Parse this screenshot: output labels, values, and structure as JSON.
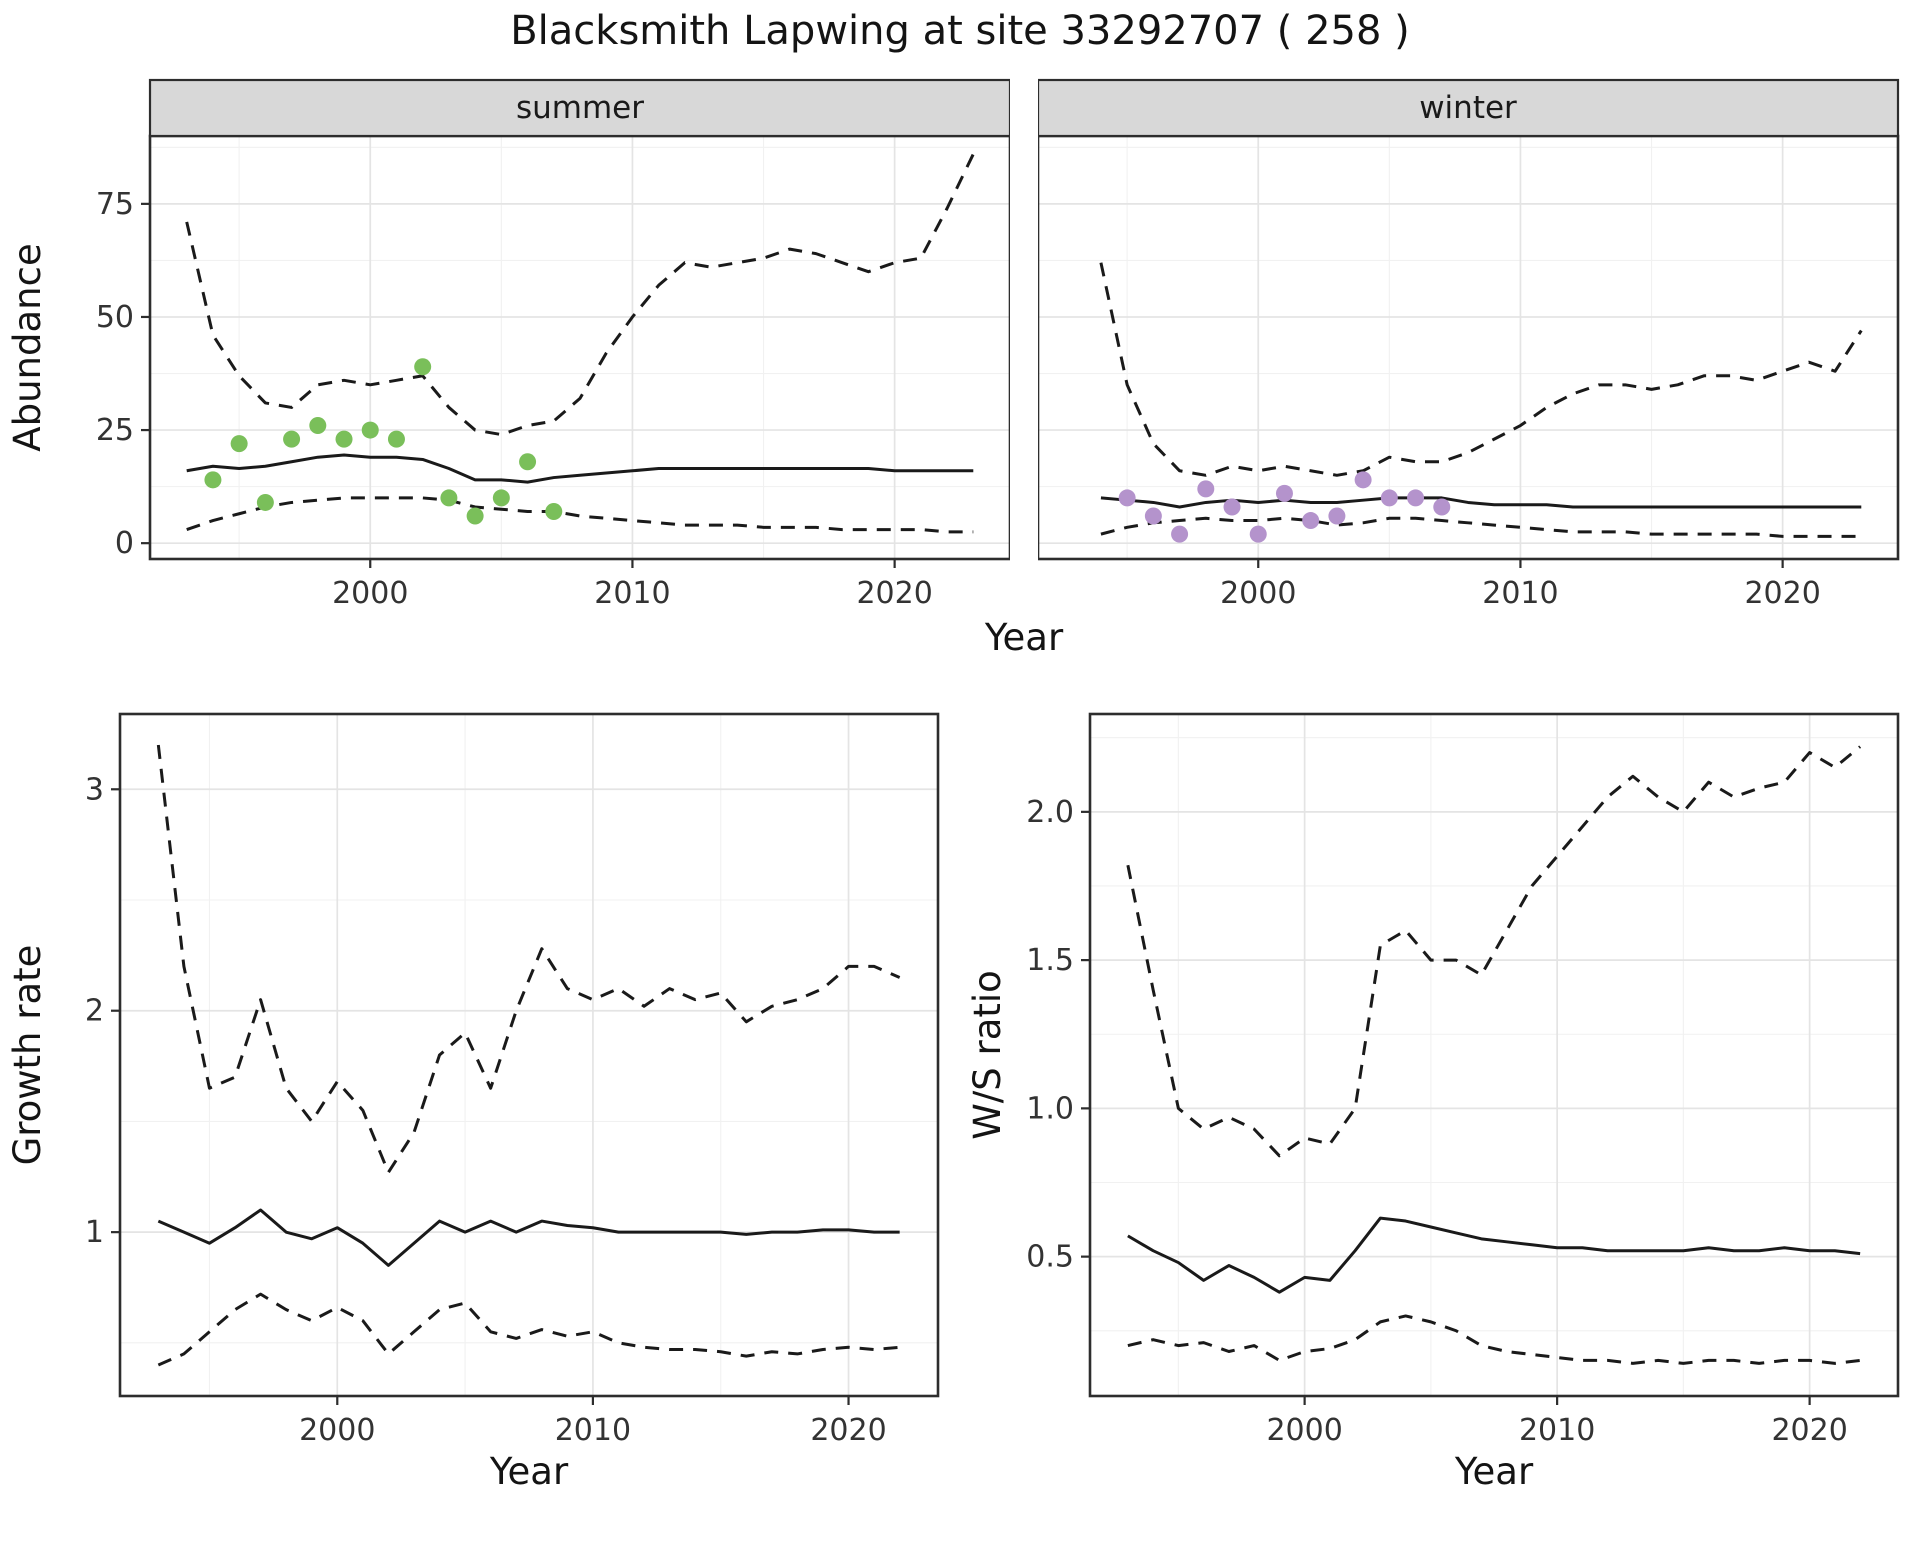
{
  "title": "Blacksmith Lapwing at site 33292707 ( 258 )",
  "axes": {
    "year_label": "Year"
  },
  "colors": {
    "line": "#1a1a1a",
    "grid_major": "#e4e4e4",
    "grid_minor": "#f1f1f1",
    "strip_bg": "#d8d8d8",
    "panel_border": "#2d2d2d",
    "tick_text": "#333333",
    "summer_points": "#7abf5a",
    "winter_points": "#b493cc"
  },
  "chart_data": [
    {
      "id": "abundance-summer",
      "type": "line",
      "facet_label": "summer",
      "ylabel": "Abundance",
      "xlabel": "Year",
      "xlim": [
        1991.6,
        2024.4
      ],
      "ylim": [
        -3.5,
        90
      ],
      "xticks": [
        2000,
        2010,
        2020
      ],
      "xtick_labels": [
        "2000",
        "2010",
        "2020"
      ],
      "yticks": [
        0,
        25,
        50,
        75
      ],
      "ytick_labels": [
        "0",
        "25",
        "50",
        "75"
      ],
      "series": [
        {
          "name": "upper_ci",
          "style": "dashed",
          "x": [
            1993,
            1994,
            1995,
            1996,
            1997,
            1998,
            1999,
            2000,
            2001,
            2002,
            2003,
            2004,
            2005,
            2006,
            2007,
            2008,
            2009,
            2010,
            2011,
            2012,
            2013,
            2014,
            2015,
            2016,
            2017,
            2018,
            2019,
            2020,
            2021,
            2022,
            2023
          ],
          "y": [
            71,
            46,
            37,
            31,
            30,
            35,
            36,
            35,
            36,
            37,
            30,
            25,
            24,
            26,
            27,
            32,
            42,
            50,
            57,
            62,
            61,
            62,
            63,
            65,
            64,
            62,
            60,
            62,
            63,
            74,
            86
          ]
        },
        {
          "name": "median",
          "style": "solid",
          "x": [
            1993,
            1994,
            1995,
            1996,
            1997,
            1998,
            1999,
            2000,
            2001,
            2002,
            2003,
            2004,
            2005,
            2006,
            2007,
            2008,
            2009,
            2010,
            2011,
            2012,
            2013,
            2014,
            2015,
            2016,
            2017,
            2018,
            2019,
            2020,
            2021,
            2022,
            2023
          ],
          "y": [
            16,
            17,
            16.5,
            17,
            18,
            19,
            19.5,
            19,
            19,
            18.5,
            16.5,
            14,
            14,
            13.5,
            14.5,
            15,
            15.5,
            16,
            16.5,
            16.5,
            16.5,
            16.5,
            16.5,
            16.5,
            16.5,
            16.5,
            16.5,
            16,
            16,
            16,
            16
          ]
        },
        {
          "name": "lower_ci",
          "style": "dashed",
          "x": [
            1993,
            1994,
            1995,
            1996,
            1997,
            1998,
            1999,
            2000,
            2001,
            2002,
            2003,
            2004,
            2005,
            2006,
            2007,
            2008,
            2009,
            2010,
            2011,
            2012,
            2013,
            2014,
            2015,
            2016,
            2017,
            2018,
            2019,
            2020,
            2021,
            2022,
            2023
          ],
          "y": [
            3,
            5,
            6.5,
            8,
            9,
            9.5,
            10,
            10,
            10,
            10,
            9.5,
            8,
            7.5,
            7,
            7,
            6,
            5.5,
            5,
            4.5,
            4,
            4,
            4,
            3.5,
            3.5,
            3.5,
            3,
            3,
            3,
            3,
            2.5,
            2.5
          ]
        }
      ],
      "points": {
        "name": "observed_counts_summer",
        "color": "#7abf5a",
        "x": [
          1994,
          1995,
          1996,
          1997,
          1998,
          1999,
          2000,
          2001,
          2002,
          2003,
          2004,
          2005,
          2006,
          2007
        ],
        "y": [
          14,
          22,
          9,
          23,
          26,
          23,
          25,
          23,
          39,
          10,
          6,
          10,
          18,
          7
        ]
      }
    },
    {
      "id": "abundance-winter",
      "type": "line",
      "facet_label": "winter",
      "ylabel": "",
      "xlabel": "Year",
      "xlim": [
        1991.6,
        2024.4
      ],
      "ylim": [
        -3.5,
        90
      ],
      "xticks": [
        2000,
        2010,
        2020
      ],
      "xtick_labels": [
        "2000",
        "2010",
        "2020"
      ],
      "yticks": [
        0,
        25,
        50,
        75
      ],
      "ytick_labels": [
        "0",
        "25",
        "50",
        "75"
      ],
      "series": [
        {
          "name": "upper_ci",
          "style": "dashed",
          "x": [
            1994,
            1995,
            1996,
            1997,
            1998,
            1999,
            2000,
            2001,
            2002,
            2003,
            2004,
            2005,
            2006,
            2007,
            2008,
            2009,
            2010,
            2011,
            2012,
            2013,
            2014,
            2015,
            2016,
            2017,
            2018,
            2019,
            2020,
            2021,
            2022,
            2023
          ],
          "y": [
            62,
            35,
            22,
            16,
            15,
            17,
            16,
            17,
            16,
            15,
            16,
            19,
            18,
            18,
            20,
            23,
            26,
            30,
            33,
            35,
            35,
            34,
            35,
            37,
            37,
            36,
            38,
            40,
            38,
            47
          ]
        },
        {
          "name": "median",
          "style": "solid",
          "x": [
            1994,
            1995,
            1996,
            1997,
            1998,
            1999,
            2000,
            2001,
            2002,
            2003,
            2004,
            2005,
            2006,
            2007,
            2008,
            2009,
            2010,
            2011,
            2012,
            2013,
            2014,
            2015,
            2016,
            2017,
            2018,
            2019,
            2020,
            2021,
            2022,
            2023
          ],
          "y": [
            10,
            9.5,
            9,
            8,
            9,
            9.5,
            9,
            9.5,
            9,
            9,
            9.5,
            10,
            10,
            10,
            9,
            8.5,
            8.5,
            8.5,
            8,
            8,
            8,
            8,
            8,
            8,
            8,
            8,
            8,
            8,
            8,
            8
          ]
        },
        {
          "name": "lower_ci",
          "style": "dashed",
          "x": [
            1994,
            1995,
            1996,
            1997,
            1998,
            1999,
            2000,
            2001,
            2002,
            2003,
            2004,
            2005,
            2006,
            2007,
            2008,
            2009,
            2010,
            2011,
            2012,
            2013,
            2014,
            2015,
            2016,
            2017,
            2018,
            2019,
            2020,
            2021,
            2022,
            2023
          ],
          "y": [
            2,
            3.5,
            4.5,
            5,
            5.5,
            5,
            5,
            5.5,
            5,
            4,
            4.5,
            5.5,
            5.5,
            5,
            4.5,
            4,
            3.5,
            3,
            2.5,
            2.5,
            2.5,
            2,
            2,
            2,
            2,
            2,
            1.5,
            1.5,
            1.5,
            1.5
          ]
        }
      ],
      "points": {
        "name": "observed_counts_winter",
        "color": "#b493cc",
        "x": [
          1995,
          1996,
          1997,
          1998,
          1999,
          2000,
          2001,
          2002,
          2003,
          2004,
          2005,
          2006,
          2007
        ],
        "y": [
          10,
          6,
          2,
          12,
          8,
          2,
          11,
          5,
          6,
          14,
          10,
          10,
          8
        ]
      }
    },
    {
      "id": "growth-rate",
      "type": "line",
      "facet_label": "",
      "ylabel": "Growth rate",
      "xlabel": "Year",
      "xlim": [
        1991.5,
        2023.5
      ],
      "ylim": [
        0.26,
        3.34
      ],
      "xticks": [
        2000,
        2010,
        2020
      ],
      "xtick_labels": [
        "2000",
        "2010",
        "2020"
      ],
      "yticks": [
        1,
        2,
        3
      ],
      "ytick_labels": [
        "1",
        "2",
        "3"
      ],
      "series": [
        {
          "name": "upper_ci",
          "style": "dashed",
          "x": [
            1993,
            1994,
            1995,
            1996,
            1997,
            1998,
            1999,
            2000,
            2001,
            2002,
            2003,
            2004,
            2005,
            2006,
            2007,
            2008,
            2009,
            2010,
            2011,
            2012,
            2013,
            2014,
            2015,
            2016,
            2017,
            2018,
            2019,
            2020,
            2021,
            2022
          ],
          "y": [
            3.2,
            2.2,
            1.65,
            1.7,
            2.05,
            1.65,
            1.5,
            1.68,
            1.55,
            1.27,
            1.45,
            1.8,
            1.9,
            1.65,
            2.0,
            2.28,
            2.1,
            2.05,
            2.1,
            2.02,
            2.1,
            2.05,
            2.08,
            1.95,
            2.02,
            2.05,
            2.1,
            2.2,
            2.2,
            2.15
          ]
        },
        {
          "name": "median",
          "style": "solid",
          "x": [
            1993,
            1994,
            1995,
            1996,
            1997,
            1998,
            1999,
            2000,
            2001,
            2002,
            2003,
            2004,
            2005,
            2006,
            2007,
            2008,
            2009,
            2010,
            2011,
            2012,
            2013,
            2014,
            2015,
            2016,
            2017,
            2018,
            2019,
            2020,
            2021,
            2022
          ],
          "y": [
            1.05,
            1.0,
            0.95,
            1.02,
            1.1,
            1.0,
            0.97,
            1.02,
            0.95,
            0.85,
            0.95,
            1.05,
            1.0,
            1.05,
            1.0,
            1.05,
            1.03,
            1.02,
            1.0,
            1.0,
            1.0,
            1.0,
            1.0,
            0.99,
            1.0,
            1.0,
            1.01,
            1.01,
            1.0,
            1.0
          ]
        },
        {
          "name": "lower_ci",
          "style": "dashed",
          "x": [
            1993,
            1994,
            1995,
            1996,
            1997,
            1998,
            1999,
            2000,
            2001,
            2002,
            2003,
            2004,
            2005,
            2006,
            2007,
            2008,
            2009,
            2010,
            2011,
            2012,
            2013,
            2014,
            2015,
            2016,
            2017,
            2018,
            2019,
            2020,
            2021,
            2022
          ],
          "y": [
            0.4,
            0.45,
            0.55,
            0.65,
            0.72,
            0.65,
            0.6,
            0.66,
            0.6,
            0.45,
            0.55,
            0.65,
            0.68,
            0.55,
            0.52,
            0.56,
            0.53,
            0.55,
            0.5,
            0.48,
            0.47,
            0.47,
            0.46,
            0.44,
            0.46,
            0.45,
            0.47,
            0.48,
            0.47,
            0.48
          ]
        }
      ],
      "points": null
    },
    {
      "id": "ws-ratio",
      "type": "line",
      "facet_label": "",
      "ylabel": "W/S ratio",
      "xlabel": "Year",
      "xlim": [
        1991.5,
        2023.5
      ],
      "ylim": [
        0.03,
        2.33
      ],
      "xticks": [
        2000,
        2010,
        2020
      ],
      "xtick_labels": [
        "2000",
        "2010",
        "2020"
      ],
      "yticks": [
        0.5,
        1.0,
        1.5,
        2.0
      ],
      "ytick_labels": [
        "0.5",
        "1.0",
        "1.5",
        "2.0"
      ],
      "series": [
        {
          "name": "upper_ci",
          "style": "dashed",
          "x": [
            1993,
            1994,
            1995,
            1996,
            1997,
            1998,
            1999,
            2000,
            2001,
            2002,
            2003,
            2004,
            2005,
            2006,
            2007,
            2008,
            2009,
            2010,
            2011,
            2012,
            2013,
            2014,
            2015,
            2016,
            2017,
            2018,
            2019,
            2020,
            2021,
            2022
          ],
          "y": [
            1.82,
            1.4,
            1.0,
            0.93,
            0.97,
            0.93,
            0.84,
            0.9,
            0.88,
            1.0,
            1.55,
            1.6,
            1.5,
            1.5,
            1.45,
            1.6,
            1.75,
            1.85,
            1.95,
            2.05,
            2.12,
            2.05,
            2.0,
            2.1,
            2.05,
            2.08,
            2.1,
            2.2,
            2.15,
            2.22
          ]
        },
        {
          "name": "median",
          "style": "solid",
          "x": [
            1993,
            1994,
            1995,
            1996,
            1997,
            1998,
            1999,
            2000,
            2001,
            2002,
            2003,
            2004,
            2005,
            2006,
            2007,
            2008,
            2009,
            2010,
            2011,
            2012,
            2013,
            2014,
            2015,
            2016,
            2017,
            2018,
            2019,
            2020,
            2021,
            2022
          ],
          "y": [
            0.57,
            0.52,
            0.48,
            0.42,
            0.47,
            0.43,
            0.38,
            0.43,
            0.42,
            0.52,
            0.63,
            0.62,
            0.6,
            0.58,
            0.56,
            0.55,
            0.54,
            0.53,
            0.53,
            0.52,
            0.52,
            0.52,
            0.52,
            0.53,
            0.52,
            0.52,
            0.53,
            0.52,
            0.52,
            0.51
          ]
        },
        {
          "name": "lower_ci",
          "style": "dashed",
          "x": [
            1993,
            1994,
            1995,
            1996,
            1997,
            1998,
            1999,
            2000,
            2001,
            2002,
            2003,
            2004,
            2005,
            2006,
            2007,
            2008,
            2009,
            2010,
            2011,
            2012,
            2013,
            2014,
            2015,
            2016,
            2017,
            2018,
            2019,
            2020,
            2021,
            2022
          ],
          "y": [
            0.2,
            0.22,
            0.2,
            0.21,
            0.18,
            0.2,
            0.15,
            0.18,
            0.19,
            0.22,
            0.28,
            0.3,
            0.28,
            0.25,
            0.2,
            0.18,
            0.17,
            0.16,
            0.15,
            0.15,
            0.14,
            0.15,
            0.14,
            0.15,
            0.15,
            0.14,
            0.15,
            0.15,
            0.14,
            0.15
          ]
        }
      ],
      "points": null
    }
  ]
}
